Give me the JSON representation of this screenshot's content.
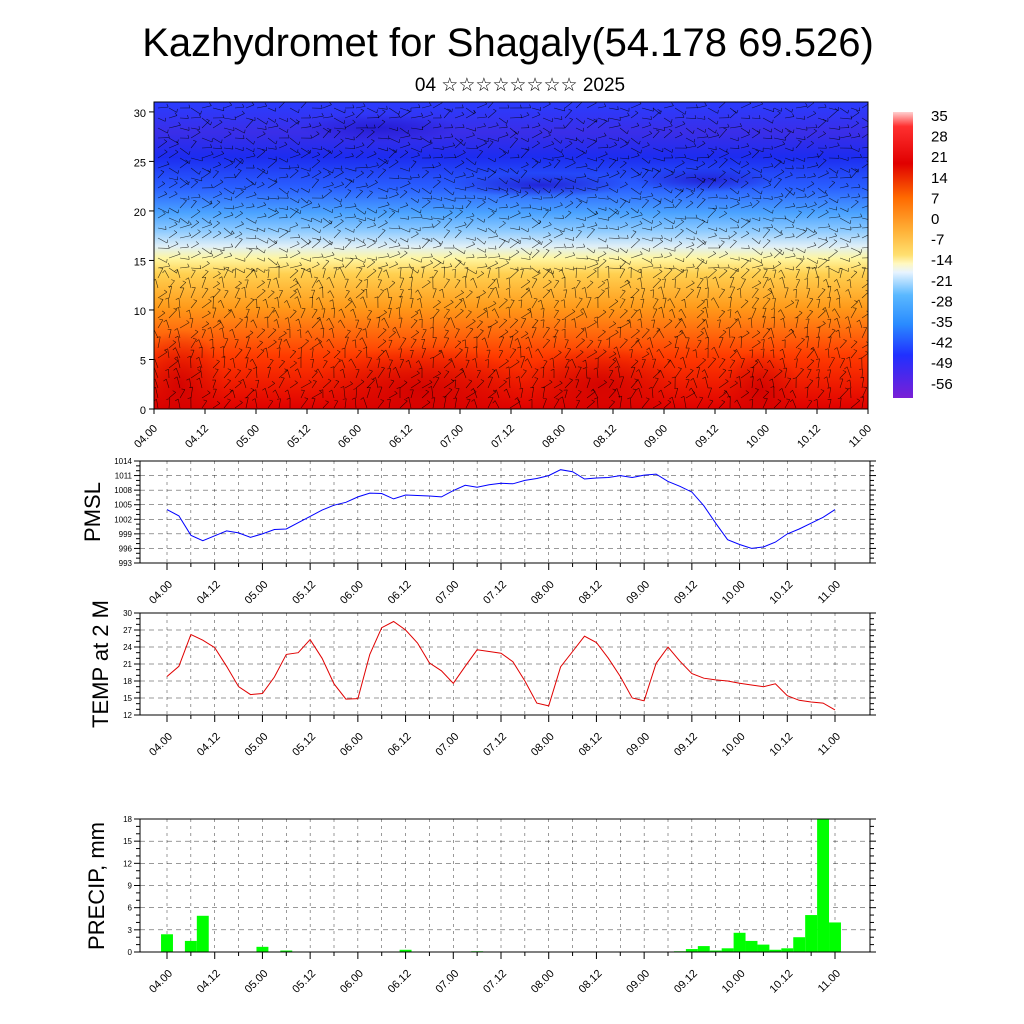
{
  "header": {
    "title": "Kazhydromet for Shagaly(54.178 69.526)",
    "subtitle": "04 ☆☆☆☆☆☆☆☆ 2025"
  },
  "chart_data": [
    {
      "type": "heatmap",
      "name": "vertical_cross_section",
      "y_ticks": [
        "0",
        "5",
        "10",
        "15",
        "20",
        "25",
        "30"
      ],
      "ylim": [
        0,
        31
      ],
      "x_ticks": [
        "04.00",
        "04.12",
        "05.00",
        "05.12",
        "06.00",
        "06.12",
        "07.00",
        "07.12",
        "08.00",
        "08.12",
        "09.00",
        "09.12",
        "10.00",
        "10.12",
        "11.00"
      ],
      "colorbar_labels": [
        "35",
        "28",
        "21",
        "14",
        "7",
        "0",
        "-7",
        "-14",
        "-21",
        "-28",
        "-35",
        "-42",
        "-49",
        "-56"
      ],
      "colormap": [
        "#7a1fd6",
        "#2020ff",
        "#3fa6ff",
        "#ffffff",
        "#fff36b",
        "#ffb43a",
        "#ff6a00",
        "#e00000"
      ],
      "vectors": "wind-barbs"
    },
    {
      "type": "line",
      "name": "pmsl",
      "ylabel": "PMSL",
      "y_ticks": [
        "993",
        "996",
        "999",
        "1002",
        "1005",
        "1008",
        "1011",
        "1014"
      ],
      "ylim": [
        993,
        1014
      ],
      "x_ticks": [
        "04.00",
        "04.12",
        "05.00",
        "05.12",
        "06.00",
        "06.12",
        "07.00",
        "07.12",
        "08.00",
        "08.12",
        "09.00",
        "09.12",
        "10.00",
        "10.12",
        "11.00"
      ],
      "color": "#0000ff",
      "x_hours": [
        0,
        3,
        6,
        9,
        12,
        15,
        18,
        21,
        24,
        27,
        30,
        33,
        36,
        39,
        42,
        45,
        48,
        51,
        54,
        57,
        60,
        63,
        66,
        69,
        72,
        75,
        78,
        81,
        84,
        87,
        90,
        93,
        96,
        99,
        102,
        105,
        108,
        111,
        114,
        117,
        120,
        123,
        126,
        129,
        132,
        135,
        138,
        141,
        144,
        147,
        150,
        153,
        156,
        159,
        162,
        165,
        168
      ],
      "values": [
        1004.0,
        1002.7,
        998.7,
        997.6,
        998.6,
        999.6,
        999.2,
        998.3,
        999.0,
        999.9,
        1000.0,
        1001.3,
        1002.6,
        1003.9,
        1004.9,
        1005.5,
        1006.6,
        1007.4,
        1007.3,
        1006.2,
        1007.0,
        1006.9,
        1006.8,
        1006.6,
        1007.9,
        1009.0,
        1008.6,
        1009.1,
        1009.4,
        1009.3,
        1010.0,
        1010.4,
        1011.0,
        1012.2,
        1011.8,
        1010.3,
        1010.5,
        1010.6,
        1011.0,
        1010.6,
        1011.1,
        1011.3,
        1009.8,
        1008.8,
        1007.6,
        1004.8,
        1001.2,
        997.8,
        996.8,
        996.0,
        996.3,
        997.3,
        999.0,
        1000.0,
        1001.2,
        1002.4,
        1004.0
      ]
    },
    {
      "type": "line",
      "name": "temp_2m",
      "ylabel": "TEMP at 2 M",
      "y_ticks": [
        "12",
        "15",
        "18",
        "21",
        "24",
        "27",
        "30"
      ],
      "ylim": [
        12,
        30
      ],
      "x_ticks": [
        "04.00",
        "04.12",
        "05.00",
        "05.12",
        "06.00",
        "06.12",
        "07.00",
        "07.12",
        "08.00",
        "08.12",
        "09.00",
        "09.12",
        "10.00",
        "10.12",
        "11.00"
      ],
      "color": "#e00000",
      "x_hours": [
        0,
        3,
        6,
        9,
        12,
        15,
        18,
        21,
        24,
        27,
        30,
        33,
        36,
        39,
        42,
        45,
        48,
        51,
        54,
        57,
        60,
        63,
        66,
        69,
        72,
        75,
        78,
        81,
        84,
        87,
        90,
        93,
        96,
        99,
        102,
        105,
        108,
        111,
        114,
        117,
        120,
        123,
        126,
        129,
        132,
        135,
        138,
        141,
        144,
        147,
        150,
        153,
        156,
        159,
        162,
        165,
        168
      ],
      "values": [
        18.8,
        20.6,
        26.2,
        25.2,
        23.9,
        20.6,
        17.0,
        15.6,
        15.8,
        18.7,
        22.7,
        23.0,
        25.3,
        22.0,
        17.5,
        14.8,
        14.9,
        22.7,
        27.4,
        28.5,
        27.0,
        24.7,
        21.2,
        19.8,
        17.6,
        20.6,
        23.5,
        23.2,
        22.9,
        21.4,
        18.0,
        14.1,
        13.6,
        20.5,
        23.2,
        25.9,
        24.8,
        22.0,
        18.8,
        15.0,
        14.5,
        21.1,
        24.0,
        21.5,
        19.3,
        18.5,
        18.2,
        18.0,
        17.6,
        17.3,
        17.0,
        17.5,
        15.4,
        14.6,
        14.3,
        14.1,
        12.9
      ]
    },
    {
      "type": "bar",
      "name": "precip",
      "ylabel": "PRECIP, mm",
      "y_ticks": [
        "0",
        "3",
        "6",
        "9",
        "12",
        "15",
        "18"
      ],
      "ylim": [
        0,
        18
      ],
      "x_ticks": [
        "04.00",
        "04.12",
        "05.00",
        "05.12",
        "06.00",
        "06.12",
        "07.00",
        "07.12",
        "08.00",
        "08.12",
        "09.00",
        "09.12",
        "10.00",
        "10.12",
        "11.00"
      ],
      "color": "#00ff00",
      "bar_hours": [
        0,
        6,
        9,
        24,
        30,
        60,
        78,
        129,
        132,
        135,
        138,
        141,
        144,
        147,
        150,
        153,
        156,
        159,
        162,
        165,
        168
      ],
      "values": [
        2.4,
        1.5,
        4.9,
        0.7,
        0.2,
        0.3,
        0.1,
        0.1,
        0.4,
        0.8,
        0.2,
        0.5,
        2.6,
        1.5,
        1.0,
        0.3,
        0.5,
        2.0,
        5.0,
        18.0,
        4.0
      ]
    }
  ]
}
